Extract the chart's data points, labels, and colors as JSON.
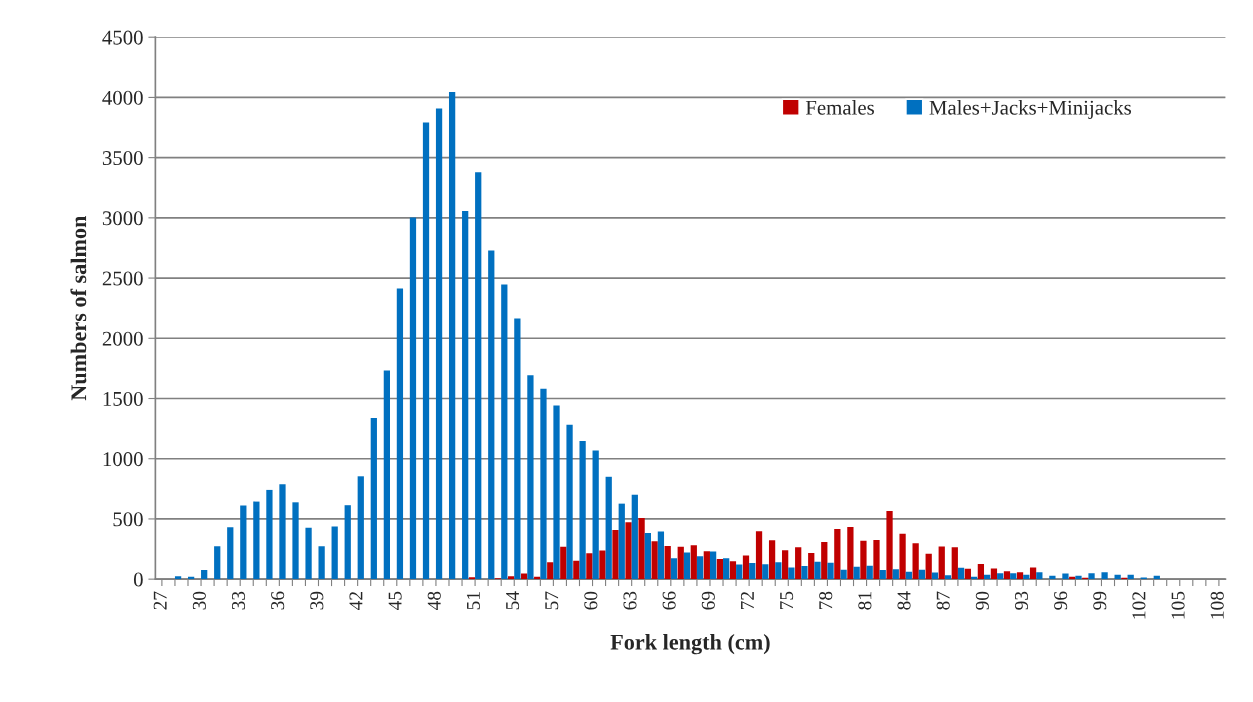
{
  "chart_data": {
    "type": "bar",
    "xlabel": "Fork length (cm)",
    "ylabel": "Numbers of salmon",
    "categories": [
      "27",
      null,
      null,
      "30",
      null,
      null,
      "33",
      null,
      null,
      "36",
      null,
      null,
      "39",
      null,
      null,
      "42",
      null,
      null,
      "45",
      null,
      null,
      "48",
      null,
      null,
      "51",
      null,
      null,
      "54",
      null,
      null,
      "57",
      null,
      null,
      "60",
      null,
      null,
      "63",
      null,
      null,
      "66",
      null,
      null,
      "69",
      null,
      null,
      "72",
      null,
      null,
      "75",
      null,
      null,
      "78",
      null,
      null,
      "81",
      null,
      null,
      "84",
      null,
      null,
      "87",
      null,
      null,
      "90",
      null,
      null,
      "93",
      null,
      null,
      "96",
      null,
      null,
      "99",
      null,
      null,
      "102",
      null,
      null,
      "105",
      null,
      null,
      "108"
    ],
    "series": [
      {
        "name": "Females",
        "color": "#c00000",
        "values": [
          0,
          0,
          0,
          0,
          0,
          0,
          0,
          0,
          0,
          0,
          0,
          0,
          0,
          0,
          0,
          0,
          0,
          0,
          0,
          0,
          0,
          0,
          0,
          0,
          15,
          0,
          8,
          24,
          47,
          19,
          141,
          270,
          152,
          215,
          237,
          408,
          472,
          508,
          315,
          276,
          270,
          282,
          232,
          168,
          149,
          196,
          397,
          323,
          240,
          265,
          218,
          308,
          417,
          434,
          318,
          326,
          565,
          376,
          299,
          210,
          271,
          265,
          86,
          125,
          89,
          66,
          58,
          97,
          0,
          null,
          19,
          11,
          0,
          null,
          11,
          0,
          0,
          0,
          0,
          0,
          0,
          0
        ]
      },
      {
        "name": "Males+Jacks+Minijacks",
        "color": "#0070c0",
        "values": [
          0,
          25,
          19,
          75,
          274,
          431,
          611,
          644,
          741,
          788,
          638,
          426,
          274,
          437,
          614,
          854,
          1338,
          1733,
          2413,
          3002,
          3792,
          3908,
          4046,
          3057,
          3378,
          2728,
          2446,
          2164,
          1694,
          1581,
          1441,
          1283,
          1148,
          1068,
          850,
          627,
          701,
          384,
          395,
          174,
          221,
          190,
          229,
          174,
          121,
          135,
          124,
          141,
          97,
          110,
          144,
          136,
          78,
          102,
          111,
          75,
          83,
          61,
          78,
          55,
          33,
          94,
          19,
          36,
          50,
          50,
          36,
          58,
          28,
          47,
          28,
          50,
          58,
          36,
          36,
          14,
          28,
          0,
          0,
          0,
          0,
          null
        ]
      }
    ],
    "ylim": [
      0,
      4500
    ],
    "yticks": [
      0,
      500,
      1000,
      1500,
      2000,
      2500,
      3000,
      3500,
      4000,
      4500
    ],
    "grid": "y",
    "legend": "top right"
  }
}
